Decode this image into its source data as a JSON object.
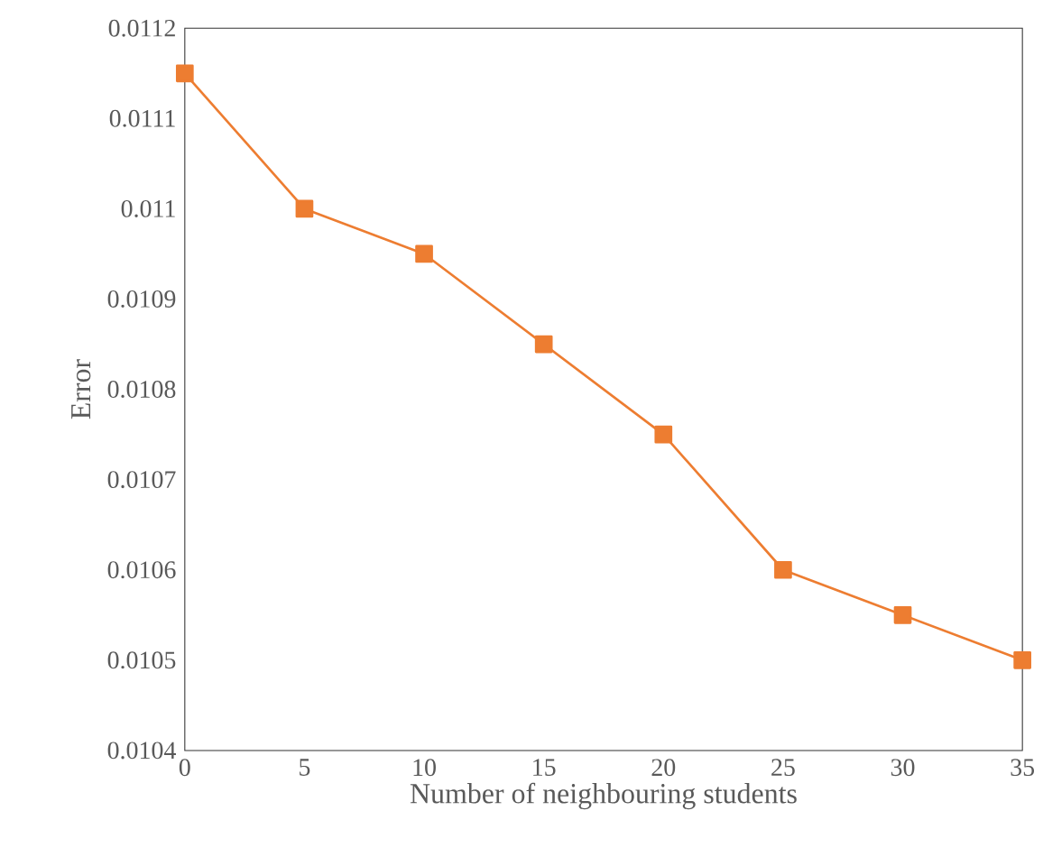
{
  "chart_data": {
    "type": "line",
    "xlabel": "Number of neighbouring students",
    "ylabel": "Error",
    "x": [
      0,
      5,
      10,
      15,
      20,
      25,
      30,
      35
    ],
    "series": [
      {
        "color": "#ed7d31",
        "values": [
          0.01115,
          0.011,
          0.01095,
          0.01085,
          0.01075,
          0.0106,
          0.01055,
          0.0105
        ]
      }
    ],
    "xlim": [
      0,
      35
    ],
    "xticks": [
      0,
      5,
      10,
      15,
      20,
      25,
      30,
      35
    ],
    "ylim": [
      0.0104,
      0.0112
    ],
    "yticks": [
      0.0104,
      0.0105,
      0.0106,
      0.0107,
      0.0108,
      0.0109,
      0.011,
      0.0111,
      0.0112
    ],
    "grid": false,
    "marker": "square",
    "line_style": "solid"
  }
}
